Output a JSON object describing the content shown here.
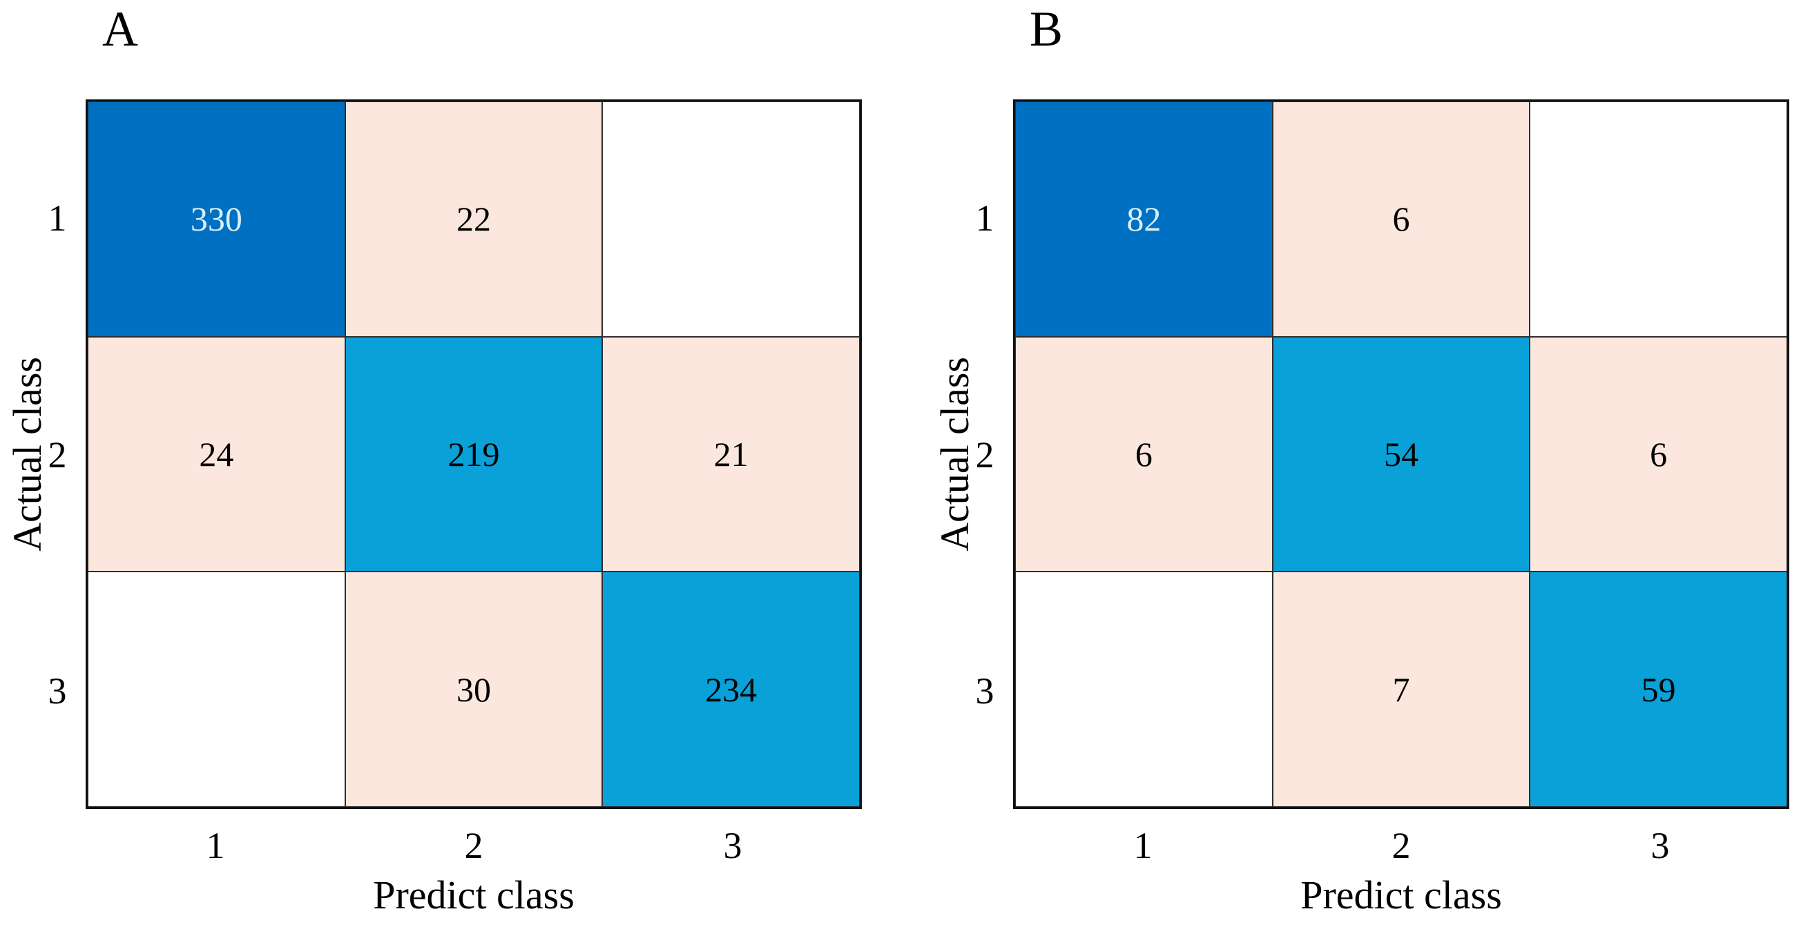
{
  "panels": [
    {
      "title": "A",
      "y_label": "Actual class",
      "x_label": "Predict class",
      "y_ticks": [
        "1",
        "2",
        "3"
      ],
      "x_ticks": [
        "1",
        "2",
        "3"
      ],
      "cells": [
        [
          "330",
          "22",
          ""
        ],
        [
          "24",
          "219",
          "21"
        ],
        [
          "",
          "30",
          "234"
        ]
      ]
    },
    {
      "title": "B",
      "y_label": "Actual class",
      "x_label": "Predict class",
      "y_ticks": [
        "1",
        "2",
        "3"
      ],
      "x_ticks": [
        "1",
        "2",
        "3"
      ],
      "cells": [
        [
          "82",
          "6",
          ""
        ],
        [
          "6",
          "54",
          "6"
        ],
        [
          "",
          "7",
          "59"
        ]
      ]
    }
  ],
  "colors": {
    "diagonal_dark_blue": "#0070C2",
    "diagonal_mid_blue": "#0AA0D8",
    "off_diagonal_pink": "#FCE7DE",
    "empty_cell_white": "#FFFFFF",
    "value_text_on_dark": "#D8EFF8",
    "value_text_on_light": "#000000",
    "grid_border": "#2E2E2E"
  },
  "chart_data": [
    {
      "type": "heatmap",
      "title": "A",
      "xlabel": "Predict class",
      "ylabel": "Actual class",
      "x_categories": [
        "1",
        "2",
        "3"
      ],
      "y_categories": [
        "1",
        "2",
        "3"
      ],
      "values": [
        [
          330,
          22,
          null
        ],
        [
          24,
          219,
          21
        ],
        [
          null,
          30,
          234
        ]
      ],
      "legend_position": "none",
      "grid": true
    },
    {
      "type": "heatmap",
      "title": "B",
      "xlabel": "Predict class",
      "ylabel": "Actual class",
      "x_categories": [
        "1",
        "2",
        "3"
      ],
      "y_categories": [
        "1",
        "2",
        "3"
      ],
      "values": [
        [
          82,
          6,
          null
        ],
        [
          6,
          54,
          6
        ],
        [
          null,
          7,
          59
        ]
      ],
      "legend_position": "none",
      "grid": true
    }
  ]
}
